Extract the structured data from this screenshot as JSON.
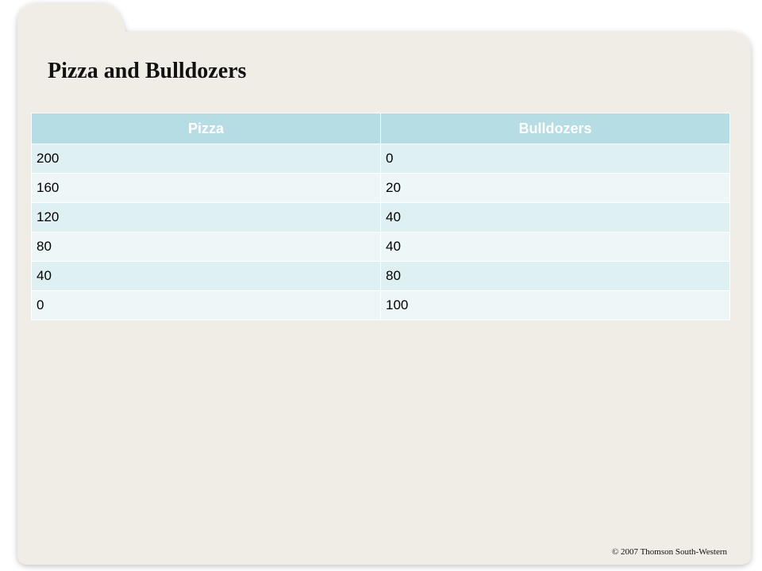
{
  "title": "Pizza and Bulldozers",
  "table": {
    "headers": [
      "Pizza",
      "Bulldozers"
    ],
    "rows": [
      [
        "200",
        "0"
      ],
      [
        "160",
        "20"
      ],
      [
        "120",
        "40"
      ],
      [
        "80",
        "40"
      ],
      [
        "40",
        "80"
      ],
      [
        "0",
        "100"
      ]
    ]
  },
  "footer": {
    "copyright": "© 2007 Thomson South-Western"
  },
  "colors": {
    "background_panel": "#f0ece6",
    "header_fill": "#b5dde3",
    "row_fill_a": "#dff0f2",
    "row_fill_b": "#eef7f8"
  }
}
